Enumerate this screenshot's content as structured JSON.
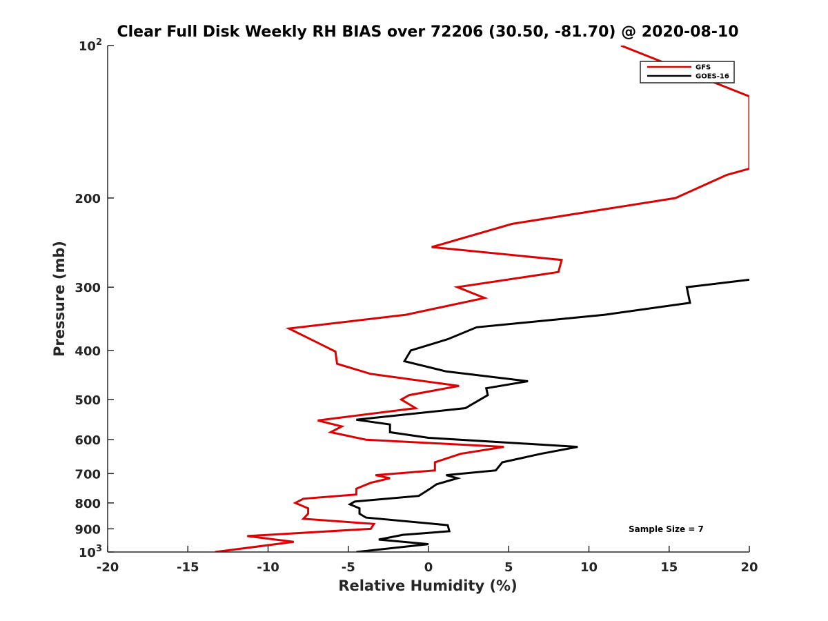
{
  "chart_data": {
    "type": "line",
    "title": "Clear Full Disk Weekly RH BIAS over 72206 (30.50, -81.70) @ 2020-08-10",
    "xlabel": "Relative Humidity (%)",
    "ylabel": "Pressure (mb)",
    "xlim": [
      -20,
      20
    ],
    "ylim": [
      100,
      1000
    ],
    "yscale": "log",
    "y_reversed": true,
    "x_ticks": [
      "-20",
      "-15",
      "-10",
      "-5",
      "0",
      "5",
      "10",
      "15",
      "20"
    ],
    "y_ticks": [
      {
        "value": 100,
        "base": "10",
        "exp": "2"
      },
      {
        "value": 200,
        "label": "200"
      },
      {
        "value": 300,
        "label": "300"
      },
      {
        "value": 400,
        "label": "400"
      },
      {
        "value": 500,
        "label": "500"
      },
      {
        "value": 600,
        "label": "600"
      },
      {
        "value": 700,
        "label": "700"
      },
      {
        "value": 800,
        "label": "800"
      },
      {
        "value": 900,
        "label": "900"
      },
      {
        "value": 1000,
        "base": "10",
        "exp": "3"
      }
    ],
    "legend_position": "top-right",
    "annotation": "Sample Size = 7",
    "series": [
      {
        "name": "GFS",
        "color": "#dd0000",
        "points": [
          [
            12.0,
            100
          ],
          [
            20.0,
            126
          ],
          [
            20.0,
            175
          ],
          [
            18.6,
            180
          ],
          [
            15.4,
            200
          ],
          [
            5.2,
            225
          ],
          [
            0.2,
            250
          ],
          [
            8.3,
            265
          ],
          [
            8.1,
            280
          ],
          [
            1.8,
            300
          ],
          [
            3.5,
            315
          ],
          [
            -1.4,
            340
          ],
          [
            -8.7,
            362
          ],
          [
            -7.0,
            385
          ],
          [
            -5.8,
            402
          ],
          [
            -5.7,
            425
          ],
          [
            -3.6,
            445
          ],
          [
            1.9,
            470
          ],
          [
            -1.2,
            490
          ],
          [
            -1.7,
            500
          ],
          [
            -0.8,
            520
          ],
          [
            -6.9,
            550
          ],
          [
            -5.4,
            565
          ],
          [
            -6.1,
            580
          ],
          [
            -3.9,
            600
          ],
          [
            4.7,
            620
          ],
          [
            2.0,
            640
          ],
          [
            0.4,
            665
          ],
          [
            0.4,
            690
          ],
          [
            -3.3,
            705
          ],
          [
            -2.4,
            715
          ],
          [
            -3.6,
            730
          ],
          [
            -4.5,
            750
          ],
          [
            -4.5,
            770
          ],
          [
            -7.8,
            785
          ],
          [
            -8.3,
            800
          ],
          [
            -7.5,
            820
          ],
          [
            -7.5,
            840
          ],
          [
            -7.8,
            860
          ],
          [
            -3.4,
            880
          ],
          [
            -3.6,
            900
          ],
          [
            -11.3,
            930
          ],
          [
            -8.4,
            955
          ],
          [
            -13.3,
            1000
          ]
        ]
      },
      {
        "name": "GOES-16",
        "color": "#000000",
        "points": [
          [
            20.0,
            290
          ],
          [
            16.1,
            300
          ],
          [
            16.3,
            322
          ],
          [
            11.0,
            340
          ],
          [
            3.0,
            360
          ],
          [
            1.2,
            380
          ],
          [
            -1.1,
            400
          ],
          [
            -1.5,
            420
          ],
          [
            1.1,
            440
          ],
          [
            6.2,
            460
          ],
          [
            3.6,
            475
          ],
          [
            3.7,
            490
          ],
          [
            2.3,
            520
          ],
          [
            -4.5,
            548
          ],
          [
            -2.4,
            560
          ],
          [
            -2.4,
            580
          ],
          [
            0.0,
            595
          ],
          [
            9.3,
            620
          ],
          [
            7.0,
            640
          ],
          [
            4.6,
            665
          ],
          [
            4.2,
            690
          ],
          [
            1.1,
            705
          ],
          [
            1.8,
            715
          ],
          [
            0.5,
            735
          ],
          [
            0.1,
            750
          ],
          [
            -0.6,
            775
          ],
          [
            -4.6,
            795
          ],
          [
            -4.9,
            805
          ],
          [
            -4.3,
            820
          ],
          [
            -4.3,
            840
          ],
          [
            -3.9,
            855
          ],
          [
            1.2,
            885
          ],
          [
            1.3,
            910
          ],
          [
            -1.6,
            925
          ],
          [
            -3.1,
            945
          ],
          [
            0.0,
            965
          ],
          [
            -4.5,
            1000
          ]
        ]
      }
    ]
  }
}
